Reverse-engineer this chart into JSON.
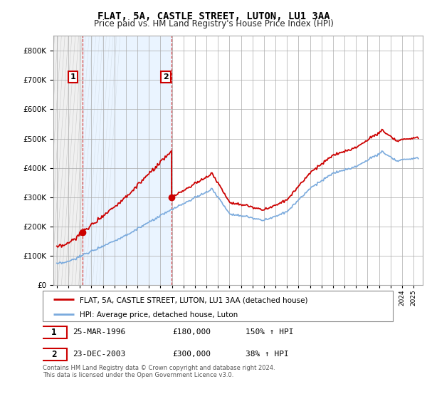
{
  "title": "FLAT, 5A, CASTLE STREET, LUTON, LU1 3AA",
  "subtitle": "Price paid vs. HM Land Registry's House Price Index (HPI)",
  "hpi_label": "HPI: Average price, detached house, Luton",
  "property_label": "FLAT, 5A, CASTLE STREET, LUTON, LU1 3AA (detached house)",
  "sale1_label": "25-MAR-1996",
  "sale1_price": "£180,000",
  "sale1_hpi": "150% ↑ HPI",
  "sale2_label": "23-DEC-2003",
  "sale2_price": "£300,000",
  "sale2_hpi": "38% ↑ HPI",
  "footnote1": "Contains HM Land Registry data © Crown copyright and database right 2024.",
  "footnote2": "This data is licensed under the Open Government Licence v3.0.",
  "property_color": "#cc0000",
  "hpi_color": "#7aaadd",
  "ylim": [
    0,
    850000
  ],
  "yticks": [
    0,
    100000,
    200000,
    300000,
    400000,
    500000,
    600000,
    700000,
    800000
  ],
  "xlim_start": 1993.7,
  "xlim_end": 2025.8,
  "sale1_year": 1996.22,
  "sale1_value": 180000,
  "sale2_year": 2003.97,
  "sale2_value": 300000,
  "xtick_start": 1994,
  "xtick_end": 2025,
  "xtick_step": 1
}
